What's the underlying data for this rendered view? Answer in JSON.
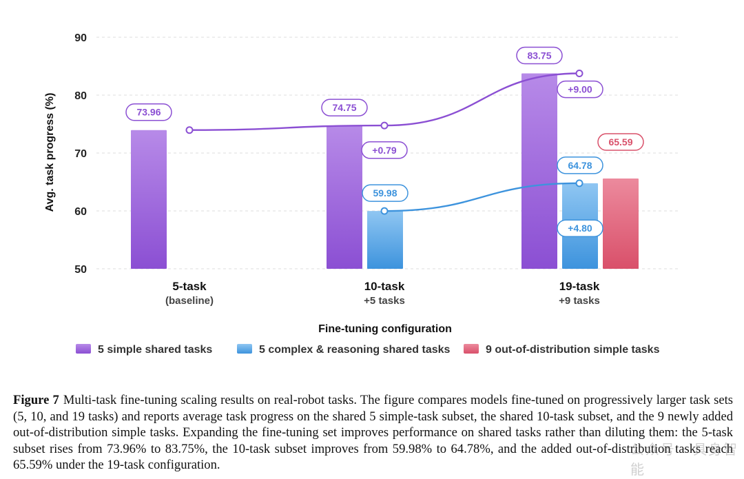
{
  "chart_data": {
    "type": "bar",
    "categories": [
      "5-task",
      "10-task",
      "19-task"
    ],
    "category_sublabels": [
      "(baseline)",
      "+5 tasks",
      "+9 tasks"
    ],
    "xlabel": "Fine-tuning configuration",
    "ylabel": "Avg. task progress (%)",
    "ylim": [
      50,
      90
    ],
    "yticks": [
      50,
      60,
      70,
      80,
      90
    ],
    "grid": "horizontal dashed",
    "legend_position": "bottom",
    "series": [
      {
        "name": "5 simple shared tasks",
        "values": [
          73.96,
          74.75,
          83.75
        ],
        "labels": [
          "73.96",
          "74.75",
          "83.75"
        ],
        "color": "#8b4fd3",
        "color_light": "#b78ae8"
      },
      {
        "name": "5 complex & reasoning shared tasks",
        "values": [
          null,
          59.98,
          64.78
        ],
        "labels": [
          "",
          "59.98",
          "64.78"
        ],
        "color": "#3d93dd",
        "color_light": "#8fc6f2"
      },
      {
        "name": "9 out-of-distribution simple tasks",
        "values": [
          null,
          null,
          65.59
        ],
        "labels": [
          "",
          "",
          "65.59"
        ],
        "color": "#d9506a",
        "color_light": "#ec8a9d"
      }
    ],
    "trend_lines": [
      {
        "series": 0,
        "color": "#8b4fd3",
        "values": [
          73.96,
          74.75,
          83.75
        ],
        "deltas": [
          "",
          "+0.79",
          "+9.00"
        ]
      },
      {
        "series": 1,
        "color": "#3d93dd",
        "values": [
          null,
          59.98,
          64.78
        ],
        "deltas": [
          "",
          "",
          "+4.80"
        ]
      }
    ]
  },
  "caption": {
    "label": "Figure 7",
    "text": "Multi-task fine-tuning scaling results on real-robot tasks. The figure compares models fine-tuned on progressively larger task sets (5, 10, and 19 tasks) and reports average task progress on the shared 5 simple-task subset, the shared 10-task subset, and the 9 newly added out-of-distribution simple tasks. Expanding the fine-tuning set improves performance on shared tasks rather than diluting them: the 5-task subset rises from 73.96% to 83.75%, the 10-task subset improves from 59.98% to 64.78%, and the added out-of-distribution tasks reach 65.59% under the 19-task configuration."
  },
  "watermark": "公众号 · 具身智能"
}
